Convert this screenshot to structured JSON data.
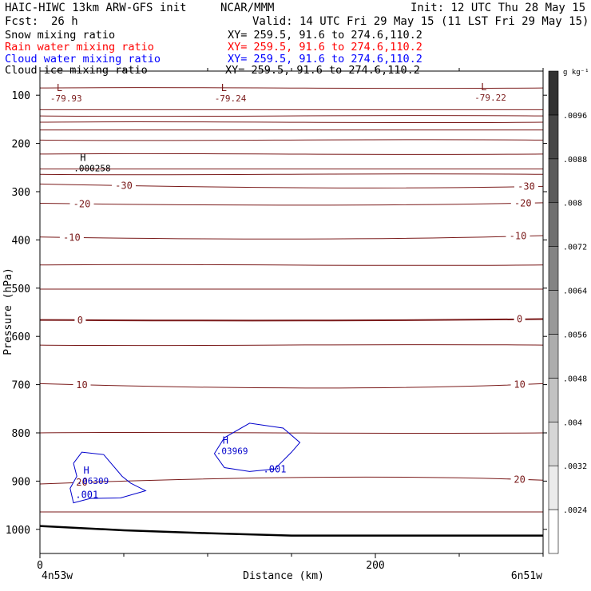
{
  "header": {
    "title": "HAIC-HIWC 13km ARW-GFS init",
    "org": "NCAR/MMM",
    "init": "Init: 12 UTC Thu 28 May 15",
    "fcst_label": "Fcst:",
    "fcst_value": "26 h",
    "valid": "Valid: 14 UTC Fri 29 May 15 (11 LST Fri 29 May 15)"
  },
  "fields": [
    {
      "name": "Snow mixing ratio",
      "xy": "XY= 259.5, 91.6 to 274.6,110.2",
      "color": "#000000"
    },
    {
      "name": "Rain water mixing ratio",
      "xy": "XY= 259.5, 91.6 to 274.6,110.2",
      "color": "#ff0000"
    },
    {
      "name": "Cloud water mixing ratio",
      "xy": "XY= 259.5, 91.6 to 274.6,110.2",
      "color": "#0000ff"
    },
    {
      "name": "Cloud ice mixing ratio",
      "xy": "XY= 259.5, 91.6 to 274.6,110.2",
      "color": "#000000"
    }
  ],
  "footer": {
    "left_point": "4n53w",
    "right_point": "6n51w"
  },
  "colors": {
    "temperature_contour": "#7a1a1a",
    "cloud_water_contour": "#0000cc",
    "terrain": "#000000"
  },
  "chart_data": {
    "type": "contour-cross-section",
    "xlabel": "Distance (km)",
    "ylabel": "Pressure (hPa)",
    "xlim": [
      0,
      300
    ],
    "ylim": [
      1050,
      50
    ],
    "x_ticks": [
      {
        "value": 0,
        "label": "0"
      },
      {
        "value": 200,
        "label": "200"
      }
    ],
    "x_minor_ticks": [
      50,
      100,
      150,
      250,
      300
    ],
    "y_ticks": [
      100,
      200,
      300,
      400,
      500,
      600,
      700,
      800,
      900,
      1000
    ],
    "colorbar": {
      "unit": "g kg⁻¹",
      "levels": [
        ".0024",
        ".0032",
        ".004",
        ".0048",
        ".0056",
        ".0064",
        ".0072",
        ".008",
        ".0088",
        ".0096"
      ],
      "min": 0.002,
      "max": 0.0104
    },
    "temperature_contours": [
      {
        "label": "-30",
        "p_left": 284,
        "p_mid": 292,
        "p_right": 289,
        "label_x": [
          50,
          290
        ]
      },
      {
        "label": "-20",
        "p_left": 324,
        "p_mid": 328,
        "p_right": 323,
        "label_x": [
          25,
          288
        ]
      },
      {
        "label": "-10",
        "p_left": 394,
        "p_mid": 398,
        "p_right": 391,
        "label_x": [
          19,
          285
        ]
      },
      {
        "label": "0",
        "p_left": 566,
        "p_mid": 567,
        "p_right": 564,
        "label_x": [
          24,
          286
        ],
        "bold": true
      },
      {
        "label": "10",
        "p_left": 698,
        "p_mid": 707,
        "p_right": 698,
        "label_x": [
          25,
          286
        ]
      },
      {
        "label": "20",
        "p_left": 906,
        "p_mid": 892,
        "p_right": 898,
        "label_x": [
          25,
          286
        ]
      }
    ],
    "unlabeled_isotherm_pressures": [
      85,
      130,
      143,
      156,
      172,
      193,
      222,
      253,
      264,
      452,
      502,
      618,
      800,
      964
    ],
    "extrema": [
      {
        "kind": "L",
        "value": "-79.93",
        "x": 9,
        "p": 98
      },
      {
        "kind": "L",
        "value": "-79.24",
        "x": 107,
        "p": 98
      },
      {
        "kind": "L",
        "value": "-79.22",
        "x": 262,
        "p": 96
      },
      {
        "kind": "H",
        "value": ".000258",
        "x": 23,
        "p": 243
      },
      {
        "kind": "H",
        "value": ".03969",
        "x": 108,
        "p": 829
      },
      {
        "kind": "H",
        "value": ".06309",
        "x": 25,
        "p": 891
      }
    ],
    "cloud_water_contours": [
      {
        "label": ".001",
        "points": [
          [
            104,
            843
          ],
          [
            110,
            810
          ],
          [
            125,
            780
          ],
          [
            145,
            790
          ],
          [
            155,
            820
          ],
          [
            150,
            840
          ],
          [
            140,
            875
          ],
          [
            125,
            880
          ],
          [
            110,
            872
          ],
          [
            104,
            843
          ]
        ]
      },
      {
        "label": ".001",
        "points": [
          [
            20,
            863
          ],
          [
            25,
            840
          ],
          [
            38,
            845
          ],
          [
            49,
            890
          ],
          [
            54,
            904
          ],
          [
            63,
            920
          ],
          [
            48,
            935
          ],
          [
            30,
            936
          ],
          [
            20,
            945
          ],
          [
            18,
            915
          ],
          [
            22,
            890
          ],
          [
            20,
            863
          ]
        ]
      }
    ],
    "cloud_water_labels": [
      {
        "label": ".001",
        "x": 140,
        "p": 875
      },
      {
        "label": ".001",
        "x": 28,
        "p": 928
      }
    ],
    "terrain_profile": [
      [
        0,
        993
      ],
      [
        50,
        1002
      ],
      [
        100,
        1008
      ],
      [
        150,
        1013
      ],
      [
        200,
        1013
      ],
      [
        300,
        1013
      ]
    ]
  }
}
